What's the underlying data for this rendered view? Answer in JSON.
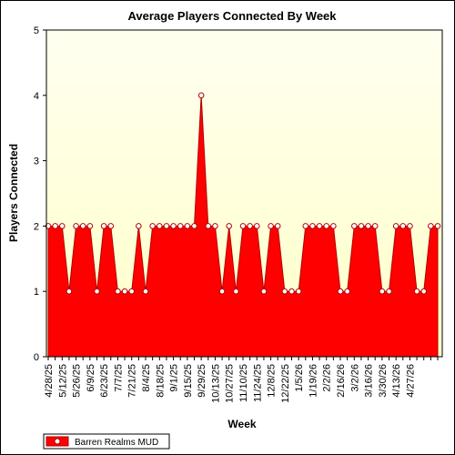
{
  "chart_data": {
    "type": "area",
    "title": "Average Players Connected By Week",
    "xlabel": "Week",
    "ylabel": "Players Connected",
    "ylim": [
      0,
      5
    ],
    "yticks": [
      "0",
      "1",
      "2",
      "3",
      "4",
      "5"
    ],
    "grid": false,
    "legend_position": "bottom-left",
    "colors": {
      "fill": "#ff0000",
      "line": "#b00000",
      "plot_background_top": "#fffff0",
      "plot_background_bottom": "#ffffc8",
      "marker_fill": "#ffffff"
    },
    "x_tick_labels": [
      "4/28/25",
      "5/12/25",
      "5/26/25",
      "6/9/25",
      "6/23/25",
      "7/7/25",
      "7/21/25",
      "8/4/25",
      "8/18/25",
      "9/1/25",
      "9/15/25",
      "9/29/25",
      "10/13/25",
      "10/27/25",
      "11/10/25",
      "11/24/25",
      "12/8/25",
      "12/22/25",
      "1/5/26",
      "1/19/26",
      "2/2/26",
      "2/16/26",
      "3/2/26",
      "3/16/26",
      "3/30/26",
      "4/13/26",
      "4/27/26"
    ],
    "series": [
      {
        "name": "Barren Realms MUD",
        "values": [
          2,
          2,
          2,
          1,
          2,
          2,
          2,
          1,
          2,
          2,
          1,
          1,
          1,
          2,
          1,
          2,
          2,
          2,
          2,
          2,
          2,
          2,
          4,
          2,
          2,
          1,
          2,
          1,
          2,
          2,
          2,
          1,
          2,
          2,
          1,
          1,
          1,
          2,
          2,
          2,
          2,
          2,
          1,
          1,
          2,
          2,
          2,
          2,
          1,
          1,
          2,
          2,
          2,
          1,
          1,
          2,
          2
        ]
      }
    ]
  }
}
